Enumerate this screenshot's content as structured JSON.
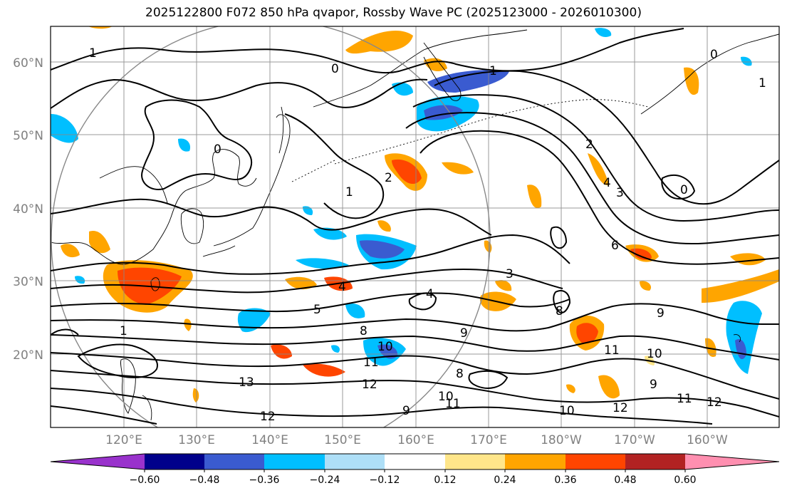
{
  "title": "2025122800 F072 850 hPa qvapor, Rossby Wave PC (2025123000 - 2026010300)",
  "map": {
    "lat_labels": [
      "60°N",
      "50°N",
      "40°N",
      "30°N",
      "20°N"
    ],
    "lon_labels": [
      "120°E",
      "130°E",
      "140°E",
      "150°E",
      "160°E",
      "170°E",
      "180°W",
      "170°W",
      "160°W"
    ],
    "axis_label_color": "#808080",
    "contour_labels": [
      "1",
      "0",
      "1",
      "0",
      "1",
      "2",
      "4",
      "3",
      "6",
      "0",
      "8",
      "9",
      "3",
      "4",
      "5",
      "4",
      "8",
      "9",
      "10",
      "11",
      "13",
      "12",
      "10",
      "11",
      "12",
      "9",
      "10",
      "11",
      "12",
      "0",
      "1",
      "2",
      "8",
      "9",
      "10",
      "11",
      "12",
      "1"
    ]
  },
  "colorbar": {
    "tick_labels": [
      "−0.60",
      "−0.48",
      "−0.36",
      "−0.24",
      "−0.12",
      "0.12",
      "0.24",
      "0.36",
      "0.48",
      "0.60"
    ],
    "bins": [
      {
        "color": "#9932cc"
      },
      {
        "color": "#00008b"
      },
      {
        "color": "#3a5bd0"
      },
      {
        "color": "#00bfff"
      },
      {
        "color": "#aedff7"
      },
      {
        "color": "#ffffff"
      },
      {
        "color": "#ffe68a"
      },
      {
        "color": "#ffa500"
      },
      {
        "color": "#ff4500"
      },
      {
        "color": "#b22222"
      },
      {
        "color": "#ff8fb0"
      }
    ]
  }
}
